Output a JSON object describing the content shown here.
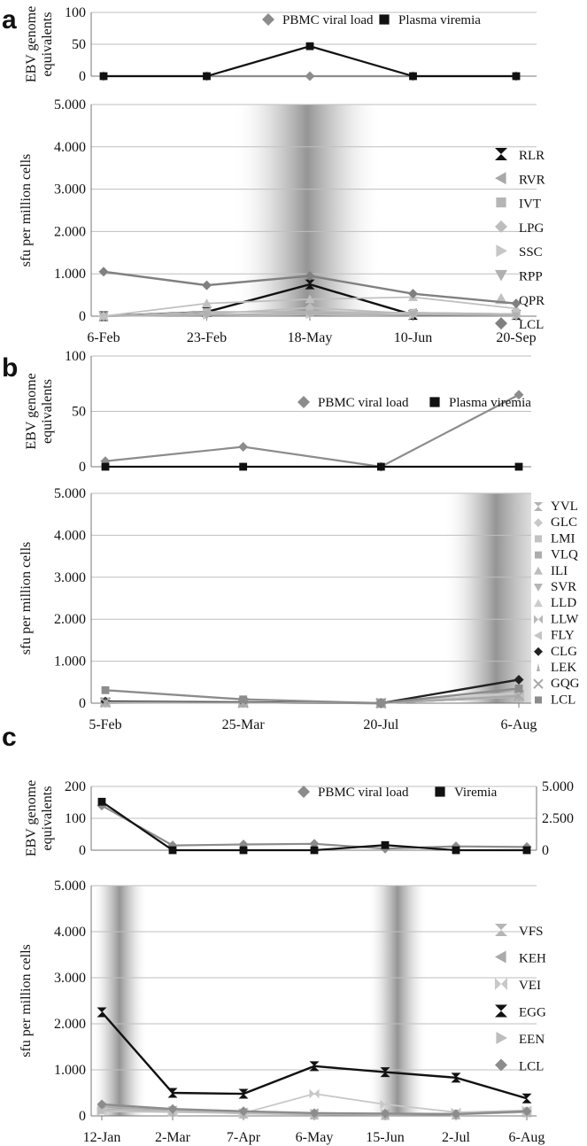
{
  "chart_data": [
    {
      "panel": "a",
      "type": "line",
      "top": {
        "ylabel": "EBV genome equivalents",
        "yticks": [
          "100",
          "50",
          "0"
        ],
        "ylim": [
          0,
          100
        ],
        "series": [
          {
            "name": "PBMC viral load",
            "marker": "diamond",
            "color": "#8c8c8c",
            "values": [
              0,
              0,
              0,
              0,
              0
            ]
          },
          {
            "name": "Plasma viremia",
            "marker": "square",
            "color": "#111111",
            "values": [
              0,
              0,
              47,
              0,
              0
            ]
          }
        ]
      },
      "bottom": {
        "ylabel": "sfu per million cells",
        "yticks": [
          "5.000",
          "4.000",
          "3.000",
          "2.000",
          "1.000",
          "0"
        ],
        "ylim": [
          0,
          5000
        ],
        "categories": [
          "6-Feb",
          "23-Feb",
          "18-May",
          "10-Jun",
          "20-Sep"
        ],
        "shaded_x": [
          1.25,
          2.7
        ],
        "series": [
          {
            "name": "RLR",
            "marker": "hourglass",
            "color": "#111111",
            "values": [
              0,
              100,
              750,
              30,
              30
            ]
          },
          {
            "name": "RVR",
            "marker": "tri-left",
            "color": "#a8a8a8",
            "values": [
              0,
              100,
              100,
              80,
              50
            ]
          },
          {
            "name": "IVT",
            "marker": "square",
            "color": "#b5b5b5",
            "values": [
              0,
              100,
              100,
              80,
              50
            ]
          },
          {
            "name": "LPG",
            "marker": "diamond",
            "color": "#bdbdbd",
            "values": [
              0,
              50,
              200,
              60,
              20
            ]
          },
          {
            "name": "SSC",
            "marker": "tri-right",
            "color": "#c6c6c6",
            "values": [
              0,
              30,
              50,
              30,
              30
            ]
          },
          {
            "name": "RPP",
            "marker": "tri-down",
            "color": "#b0b0b0",
            "values": [
              0,
              30,
              60,
              30,
              20
            ]
          },
          {
            "name": "QPR",
            "marker": "tri-up",
            "color": "#c0c0c0",
            "values": [
              0,
              300,
              400,
              450,
              180
            ]
          },
          {
            "name": "LCL",
            "marker": "diamond",
            "color": "#808080",
            "values": [
              1050,
              730,
              950,
              530,
              300
            ]
          }
        ]
      }
    },
    {
      "panel": "b",
      "type": "line",
      "top": {
        "ylabel": "EBV genome equivalents",
        "yticks": [
          "100",
          "50",
          "0"
        ],
        "ylim": [
          0,
          100
        ],
        "series": [
          {
            "name": "PBMC viral load",
            "marker": "diamond",
            "color": "#8c8c8c",
            "values": [
              5,
              18,
              0,
              65
            ]
          },
          {
            "name": "Plasma viremia",
            "marker": "square",
            "color": "#111111",
            "values": [
              0,
              0,
              0,
              0
            ]
          }
        ]
      },
      "bottom": {
        "ylabel": "sfu per million cells",
        "yticks": [
          "5.000",
          "4.000",
          "3.000",
          "2.000",
          "1.000",
          "0"
        ],
        "ylim": [
          0,
          5000
        ],
        "categories": [
          "5-Feb",
          "25-Mar",
          "20-Jul",
          "6-Aug"
        ],
        "shaded_x": [
          2.45,
          3.3
        ],
        "series": [
          {
            "name": "YVL",
            "marker": "hourglass",
            "color": "#b3b3b3",
            "values": [
              20,
              10,
              0,
              150
            ]
          },
          {
            "name": "GLC",
            "marker": "diamond",
            "color": "#c8c8c8",
            "values": [
              20,
              10,
              0,
              200
            ]
          },
          {
            "name": "LMI",
            "marker": "square",
            "color": "#c2c2c2",
            "values": [
              20,
              10,
              0,
              150
            ]
          },
          {
            "name": "VLQ",
            "marker": "square",
            "color": "#adadad",
            "values": [
              30,
              20,
              0,
              200
            ]
          },
          {
            "name": "ILI",
            "marker": "tri-up",
            "color": "#bdbdbd",
            "values": [
              30,
              20,
              0,
              250
            ]
          },
          {
            "name": "SVR",
            "marker": "tri-down",
            "color": "#b5b5b5",
            "values": [
              20,
              20,
              0,
              150
            ]
          },
          {
            "name": "LLD",
            "marker": "tri-up",
            "color": "#cccccc",
            "values": [
              40,
              30,
              0,
              250
            ]
          },
          {
            "name": "LLW",
            "marker": "bowtie",
            "color": "#b8b8b8",
            "values": [
              20,
              10,
              0,
              150
            ]
          },
          {
            "name": "FLY",
            "marker": "tri-left",
            "color": "#c4c4c4",
            "values": [
              30,
              20,
              0,
              200
            ]
          },
          {
            "name": "CLG",
            "marker": "diamond",
            "color": "#222222",
            "values": [
              40,
              20,
              0,
              560
            ]
          },
          {
            "name": "LEK",
            "marker": "tri-up-small",
            "color": "#b0b0b0",
            "values": [
              20,
              10,
              0,
              150
            ]
          },
          {
            "name": "GQG",
            "marker": "x",
            "color": "#a8a8a8",
            "values": [
              20,
              10,
              0,
              180
            ]
          },
          {
            "name": "LCL",
            "marker": "square",
            "color": "#8c8c8c",
            "values": [
              310,
              90,
              0,
              350
            ]
          }
        ]
      }
    },
    {
      "panel": "c",
      "type": "line",
      "top": {
        "ylabel": "EBV genome equivalents",
        "yticks": [
          "200",
          "100",
          "0"
        ],
        "ylim": [
          0,
          200
        ],
        "yticks_right": [
          "5.000",
          "2.500",
          "0"
        ],
        "ylim_right": [
          0,
          5000
        ],
        "series": [
          {
            "name": "PBMC viral load",
            "marker": "diamond",
            "color": "#8c8c8c",
            "axis": "left",
            "values": [
              140,
              15,
              18,
              20,
              5,
              12,
              10
            ]
          },
          {
            "name": "Viremia",
            "marker": "square",
            "color": "#111111",
            "axis": "right",
            "values": [
              3800,
              0,
              0,
              0,
              400,
              0,
              0
            ]
          }
        ]
      },
      "bottom": {
        "ylabel": "sfu per million cells",
        "yticks": [
          "5.000",
          "4.000",
          "3.000",
          "2.000",
          "1.000",
          "0"
        ],
        "ylim": [
          0,
          5000
        ],
        "categories": [
          "12-Jan",
          "2-Mar",
          "7-Apr",
          "6-May",
          "15-Jun",
          "2-Jul",
          "6-Aug"
        ],
        "shaded_x": [
          [
            -0.15,
            0.65
          ],
          [
            3.75,
            4.6
          ]
        ],
        "series": [
          {
            "name": "VFS",
            "marker": "hourglass",
            "color": "#b5b5b5",
            "values": [
              150,
              100,
              50,
              30,
              20,
              30,
              80
            ]
          },
          {
            "name": "KEH",
            "marker": "tri-left",
            "color": "#aaaaaa",
            "values": [
              200,
              120,
              80,
              60,
              40,
              50,
              100
            ]
          },
          {
            "name": "VEI",
            "marker": "bowtie",
            "color": "#c8c8c8",
            "values": [
              100,
              80,
              60,
              480,
              250,
              80,
              120
            ]
          },
          {
            "name": "EGG",
            "marker": "hourglass",
            "color": "#111111",
            "values": [
              2250,
              500,
              480,
              1080,
              950,
              830,
              380
            ]
          },
          {
            "name": "EEN",
            "marker": "tri-right",
            "color": "#bdbdbd",
            "values": [
              120,
              100,
              60,
              50,
              40,
              40,
              80
            ]
          },
          {
            "name": "LCL",
            "marker": "diamond",
            "color": "#8c8c8c",
            "values": [
              250,
              150,
              100,
              60,
              50,
              40,
              100
            ]
          }
        ]
      }
    }
  ]
}
